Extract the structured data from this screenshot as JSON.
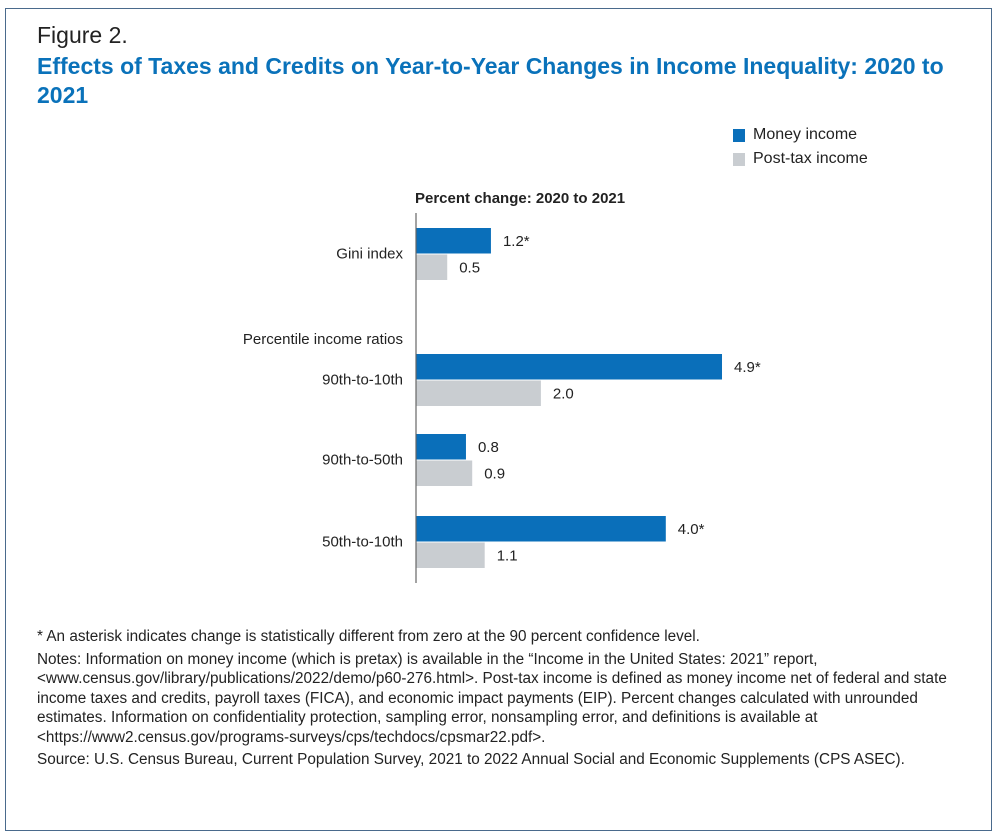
{
  "figure_label": "Figure 2.",
  "chart_data": {
    "type": "bar",
    "orientation": "horizontal",
    "title": "Effects of Taxes and Credits on Year-to-Year Changes in Income Inequality: 2020 to 2021",
    "xlabel": "Percent change: 2020 to 2021",
    "group_label": "Percentile income ratios",
    "categories": [
      "Gini index",
      "90th-to-10th",
      "90th-to-50th",
      "50th-to-10th"
    ],
    "series": [
      {
        "name": "Money income",
        "color": "#0a6fba",
        "values": [
          1.2,
          4.9,
          0.8,
          4.0
        ],
        "labels": [
          "1.2*",
          "4.9*",
          "0.8",
          "4.0*"
        ]
      },
      {
        "name": "Post-tax income",
        "color": "#c9cdd1",
        "values": [
          0.5,
          2.0,
          0.9,
          1.1
        ],
        "labels": [
          "0.5",
          "2.0",
          "0.9",
          "1.1"
        ]
      }
    ],
    "xlim": [
      0,
      5
    ],
    "grid": false,
    "legend": "top-right"
  },
  "notes": {
    "asterisk": "* An asterisk indicates change is statistically different from zero at the 90 percent confidence level.",
    "notes": "Notes: Information on money income (which is pretax) is available in the “Income in the United States: 2021” report, <www.census.gov/library/publications/2022/demo/p60-276.html>. Post-tax income is defined as money income net of federal and state income taxes and credits, payroll taxes (FICA), and economic impact payments (EIP). Percent changes calculated with unrounded estimates. Information on confidentiality protection, sampling error, nonsampling error, and definitions is available at <https://www2.census.gov/programs-surveys/cps/techdocs/cpsmar22.pdf>.",
    "source": "Source: U.S. Census Bureau, Current Population Survey, 2021 to 2022 Annual Social and Economic Supplements (CPS ASEC)."
  }
}
